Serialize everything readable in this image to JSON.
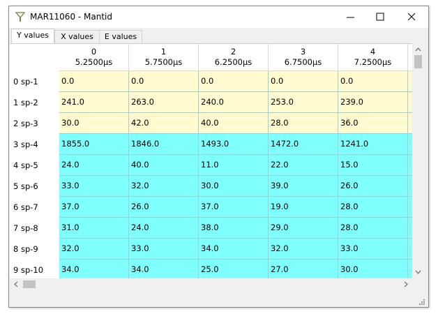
{
  "window": {
    "title": "MAR11060 - Mantid"
  },
  "tabs": [
    "Y values",
    "X values",
    "E values"
  ],
  "table": {
    "columns": [
      {
        "index": "0",
        "x": "5.2500µs"
      },
      {
        "index": "1",
        "x": "5.7500µs"
      },
      {
        "index": "2",
        "x": "6.2500µs"
      },
      {
        "index": "3",
        "x": "6.7500µs"
      },
      {
        "index": "4",
        "x": "7.2500µs"
      }
    ],
    "rows": [
      {
        "label": "0 sp-1",
        "cells": [
          "0.0",
          "0.0",
          "0.0",
          "0.0",
          "0.0"
        ]
      },
      {
        "label": "1 sp-2",
        "cells": [
          "241.0",
          "263.0",
          "240.0",
          "253.0",
          "239.0"
        ]
      },
      {
        "label": "2 sp-3",
        "cells": [
          "30.0",
          "42.0",
          "40.0",
          "28.0",
          "36.0"
        ]
      },
      {
        "label": "3 sp-4",
        "cells": [
          "1855.0",
          "1846.0",
          "1493.0",
          "1472.0",
          "1241.0"
        ]
      },
      {
        "label": "4 sp-5",
        "cells": [
          "24.0",
          "40.0",
          "11.0",
          "22.0",
          "15.0"
        ]
      },
      {
        "label": "5 sp-6",
        "cells": [
          "33.0",
          "32.0",
          "30.0",
          "39.0",
          "26.0"
        ]
      },
      {
        "label": "6 sp-7",
        "cells": [
          "37.0",
          "26.0",
          "37.0",
          "19.0",
          "28.0"
        ]
      },
      {
        "label": "7 sp-8",
        "cells": [
          "31.0",
          "24.0",
          "38.0",
          "29.0",
          "28.0"
        ]
      },
      {
        "label": "8 sp-9",
        "cells": [
          "32.0",
          "33.0",
          "34.0",
          "32.0",
          "33.0"
        ]
      },
      {
        "label": "9 sp-10",
        "cells": [
          "34.0",
          "34.0",
          "25.0",
          "27.0",
          "30.0"
        ]
      }
    ]
  }
}
